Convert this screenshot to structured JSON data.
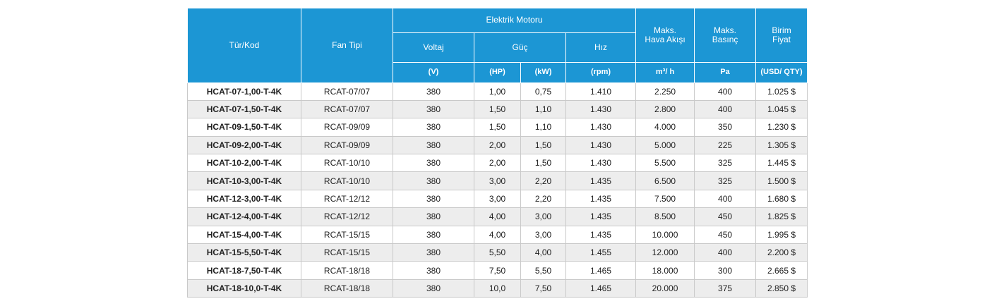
{
  "table": {
    "header": {
      "tur_kod": "Tür/Kod",
      "fan_tipi": "Fan Tipi",
      "group": "Elektrik Motoru",
      "voltaj": "Voltaj",
      "guc": "Güç",
      "hiz": "Hız",
      "hava": "Maks.\nHava Akışı",
      "basinc": "Maks.\nBasınç",
      "fiyat": "Birim\nFiyat",
      "units": [
        "(V)",
        "(HP)",
        "(kW)",
        "(rpm)",
        "m³/ h",
        "Pa",
        "(USD/ QTY)"
      ]
    },
    "rows": [
      [
        "HCAT-07-1,00-T-4K",
        "RCAT-07/07",
        "380",
        "1,00",
        "0,75",
        "1.410",
        "2.250",
        "400",
        "1.025 $"
      ],
      [
        "HCAT-07-1,50-T-4K",
        "RCAT-07/07",
        "380",
        "1,50",
        "1,10",
        "1.430",
        "2.800",
        "400",
        "1.045 $"
      ],
      [
        "HCAT-09-1,50-T-4K",
        "RCAT-09/09",
        "380",
        "1,50",
        "1,10",
        "1.430",
        "4.000",
        "350",
        "1.230 $"
      ],
      [
        "HCAT-09-2,00-T-4K",
        "RCAT-09/09",
        "380",
        "2,00",
        "1,50",
        "1.430",
        "5.000",
        "225",
        "1.305 $"
      ],
      [
        "HCAT-10-2,00-T-4K",
        "RCAT-10/10",
        "380",
        "2,00",
        "1,50",
        "1.430",
        "5.500",
        "325",
        "1.445 $"
      ],
      [
        "HCAT-10-3,00-T-4K",
        "RCAT-10/10",
        "380",
        "3,00",
        "2,20",
        "1.435",
        "6.500",
        "325",
        "1.500 $"
      ],
      [
        "HCAT-12-3,00-T-4K",
        "RCAT-12/12",
        "380",
        "3,00",
        "2,20",
        "1.435",
        "7.500",
        "400",
        "1.680 $"
      ],
      [
        "HCAT-12-4,00-T-4K",
        "RCAT-12/12",
        "380",
        "4,00",
        "3,00",
        "1.435",
        "8.500",
        "450",
        "1.825 $"
      ],
      [
        "HCAT-15-4,00-T-4K",
        "RCAT-15/15",
        "380",
        "4,00",
        "3,00",
        "1.435",
        "10.000",
        "450",
        "1.995 $"
      ],
      [
        "HCAT-15-5,50-T-4K",
        "RCAT-15/15",
        "380",
        "5,50",
        "4,00",
        "1.455",
        "12.000",
        "400",
        "2.200 $"
      ],
      [
        "HCAT-18-7,50-T-4K",
        "RCAT-18/18",
        "380",
        "7,50",
        "5,50",
        "1.465",
        "18.000",
        "300",
        "2.665 $"
      ],
      [
        "HCAT-18-10,0-T-4K",
        "RCAT-18/18",
        "380",
        "10,0",
        "7,50",
        "1.465",
        "20.000",
        "375",
        "2.850 $"
      ]
    ]
  }
}
